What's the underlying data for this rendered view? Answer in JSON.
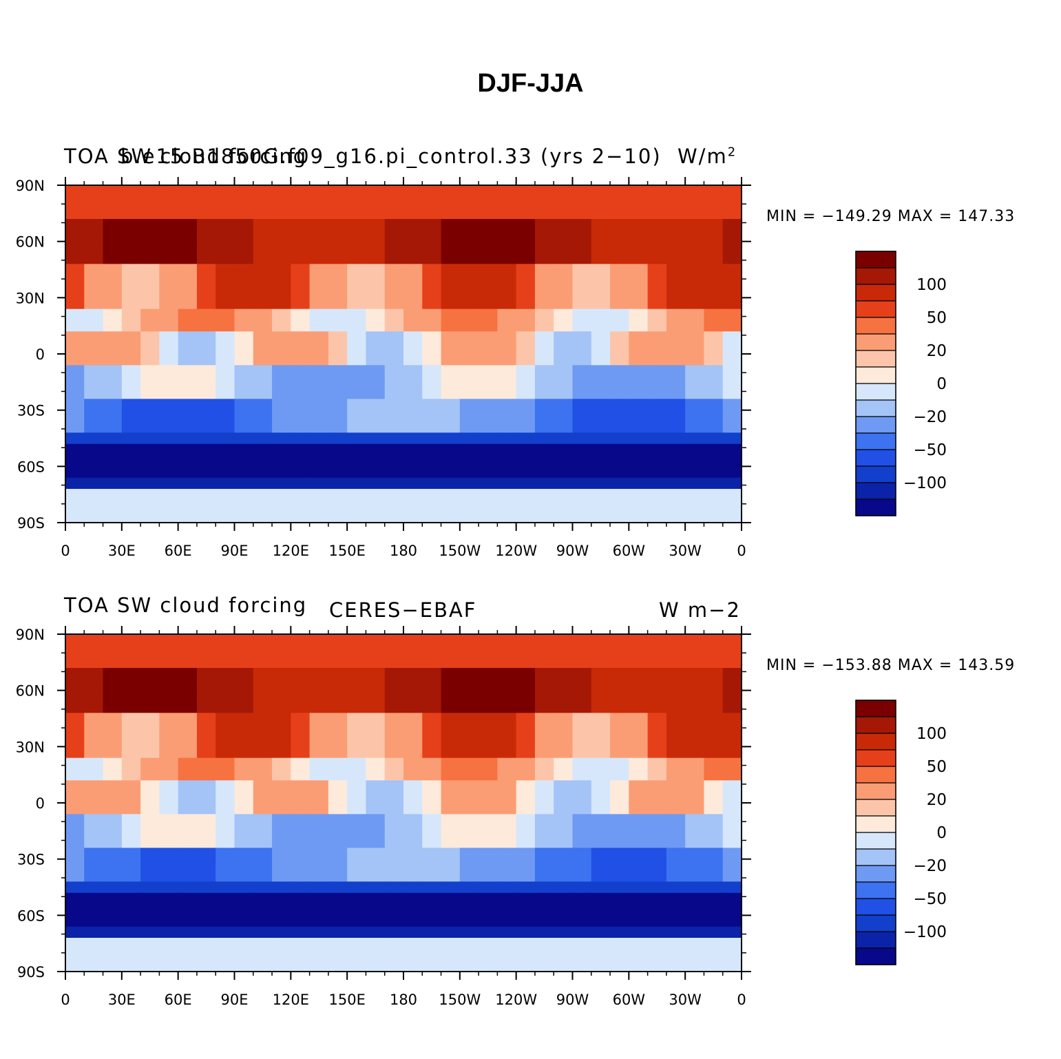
{
  "title": "DJF-JJA",
  "colors": {
    "palette": [
      "#08088a",
      "#0a23a8",
      "#1240cc",
      "#2050e6",
      "#3d72f0",
      "#6e9af3",
      "#a4c3f7",
      "#d6e7fb",
      "#fdeadb",
      "#fcc5aa",
      "#fb9d74",
      "#f77241",
      "#e6401a",
      "#c82a08",
      "#a51805",
      "#7a0000"
    ],
    "coastline": "#000000"
  },
  "x_ticks": [
    "0",
    "30E",
    "60E",
    "90E",
    "120E",
    "150E",
    "180",
    "150W",
    "120W",
    "90W",
    "60W",
    "30W",
    "0"
  ],
  "y_ticks": [
    "90N",
    "60N",
    "30N",
    "0",
    "30S",
    "60S",
    "90S"
  ],
  "colorbar_labels": [
    "100",
    "50",
    "20",
    "0",
    "−20",
    "−50",
    "−100"
  ],
  "panels": [
    {
      "id": "top",
      "left_text": "TOA  SW cloud forcing",
      "center_text": "b.e15.B1850G.f09_g16.pi_control.33 (yrs 2−10)",
      "right_text": "W/m",
      "right_sup": "2",
      "minmax": "MIN = −149.29  MAX = 147.33",
      "min": -149.29,
      "max": 147.33
    },
    {
      "id": "bottom",
      "left_text": "TOA SW cloud forcing",
      "center_text": "CERES−EBAF",
      "right_text": "W m−2",
      "right_sup": "",
      "minmax": "MIN = −153.88  MAX = 143.59",
      "min": -153.88,
      "max": 143.59
    }
  ]
}
